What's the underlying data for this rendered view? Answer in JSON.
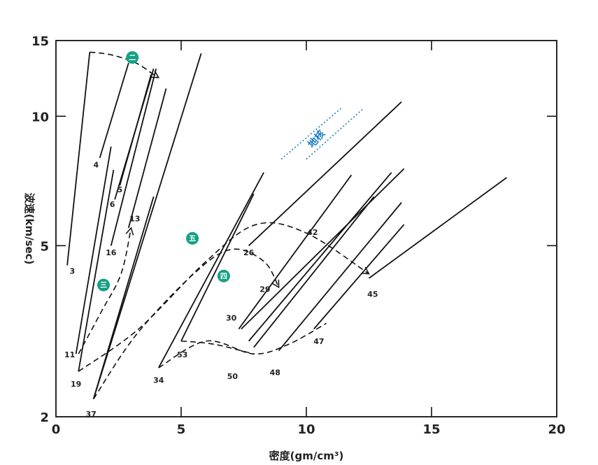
{
  "chart_data": {
    "type": "line",
    "title": "",
    "xlabel": "密度(gm/cm³)",
    "ylabel": "波速(km/sec)",
    "xlim": [
      0,
      20
    ],
    "ylim": [
      2,
      15
    ],
    "x_ticks": [
      {
        "v": 0,
        "label": "0"
      },
      {
        "v": 5,
        "label": "5"
      },
      {
        "v": 10,
        "label": "10"
      },
      {
        "v": 15,
        "label": "15"
      },
      {
        "v": 20,
        "label": "20"
      }
    ],
    "y_ticks": [
      {
        "v": 2,
        "label": "2"
      },
      {
        "v": 5,
        "label": "5"
      },
      {
        "v": 10,
        "label": "10"
      },
      {
        "v": 15,
        "label": "15"
      }
    ],
    "solid_lines": [
      {
        "label": "3",
        "x": [
          0.45,
          1.35
        ],
        "y": [
          4.5,
          14.1
        ]
      },
      {
        "label": "4",
        "x": [
          1.75,
          2.9
        ],
        "y": [
          8.0,
          13.3
        ]
      },
      {
        "label": "5",
        "x": [
          2.55,
          3.8
        ],
        "y": [
          6.9,
          12.5
        ]
      },
      {
        "label": "6",
        "x": [
          2.35,
          3.9
        ],
        "y": [
          6.4,
          12.9
        ]
      },
      {
        "label": "16",
        "x": [
          2.2,
          4.0
        ],
        "y": [
          5.0,
          12.9
        ]
      },
      {
        "label": "13",
        "x": [
          2.9,
          4.4
        ],
        "y": [
          5.5,
          11.6
        ]
      },
      {
        "label": "11",
        "x": [
          0.8,
          2.2
        ],
        "y": [
          2.8,
          8.5
        ]
      },
      {
        "label": "19",
        "x": [
          0.9,
          2.3
        ],
        "y": [
          2.55,
          7.5
        ]
      },
      {
        "label": "37",
        "x": [
          1.5,
          5.8
        ],
        "y": [
          2.2,
          14.0
        ]
      },
      {
        "label": "",
        "x": [
          1.5,
          3.9
        ],
        "y": [
          2.2,
          6.5
        ]
      },
      {
        "label": "34",
        "x": [
          4.1,
          8.3
        ],
        "y": [
          2.6,
          7.4
        ]
      },
      {
        "label": "53",
        "x": [
          5.0,
          7.9
        ],
        "y": [
          3.0,
          6.6
        ]
      },
      {
        "label": "26",
        "x": [
          7.7,
          13.8
        ],
        "y": [
          5.0,
          10.8
        ]
      },
      {
        "label": "30",
        "x": [
          7.3,
          11.8
        ],
        "y": [
          3.2,
          7.3
        ]
      },
      {
        "label": "29",
        "x": [
          7.4,
          13.9
        ],
        "y": [
          3.2,
          7.55
        ]
      },
      {
        "label": "42",
        "x": [
          7.7,
          13.4
        ],
        "y": [
          3.0,
          7.4
        ]
      },
      {
        "label": "50",
        "x": [
          7.9,
          12.7
        ],
        "y": [
          2.9,
          6.5
        ]
      },
      {
        "label": "48",
        "x": [
          8.9,
          13.8
        ],
        "y": [
          2.85,
          6.3
        ]
      },
      {
        "label": "47",
        "x": [
          10.3,
          13.9
        ],
        "y": [
          3.2,
          5.6
        ]
      },
      {
        "label": "45",
        "x": [
          12.5,
          18.0
        ],
        "y": [
          4.2,
          7.2
        ]
      }
    ],
    "dashed_curves": [
      {
        "marker": "二",
        "x": [
          1.35,
          2.2,
          3.2,
          3.9,
          4.1
        ],
        "y": [
          14.1,
          13.9,
          13.3,
          12.5,
          12.3
        ],
        "arrow": true
      },
      {
        "marker": "三",
        "x": [
          0.9,
          1.8,
          2.6,
          3.0
        ],
        "y": [
          2.8,
          3.5,
          4.3,
          5.5
        ],
        "arrow": true
      },
      {
        "marker": "",
        "x": [
          0.9,
          3.3,
          6.0,
          8.0,
          10.0,
          12.5
        ],
        "y": [
          2.55,
          3.2,
          4.6,
          5.6,
          5.35,
          4.3
        ],
        "arrow": true
      },
      {
        "marker": "四",
        "x": [
          1.5,
          3.2,
          5.5,
          7.0,
          8.3,
          8.9
        ],
        "y": [
          2.2,
          3.1,
          4.3,
          4.9,
          4.6,
          4.0
        ],
        "arrow": true
      },
      {
        "marker": "五",
        "x": [
          4.1,
          6.0,
          7.9,
          9.3,
          10.8
        ],
        "y": [
          2.6,
          3.0,
          2.8,
          2.95,
          3.3
        ],
        "arrow": false
      },
      {
        "marker": "",
        "x": [
          5.0,
          6.3,
          7.9
        ],
        "y": [
          3.0,
          2.95,
          2.8
        ],
        "arrow": false
      }
    ],
    "point_labels": [
      {
        "text": "3",
        "x": 0.65,
        "y": 4.3
      },
      {
        "text": "4",
        "x": 1.6,
        "y": 7.6
      },
      {
        "text": "5",
        "x": 2.55,
        "y": 6.65
      },
      {
        "text": "6",
        "x": 2.25,
        "y": 6.15
      },
      {
        "text": "16",
        "x": 2.2,
        "y": 4.75
      },
      {
        "text": "13",
        "x": 3.15,
        "y": 5.7
      },
      {
        "text": "11",
        "x": 0.55,
        "y": 2.75
      },
      {
        "text": "19",
        "x": 0.8,
        "y": 2.35
      },
      {
        "text": "37",
        "x": 1.4,
        "y": 2.0
      },
      {
        "text": "34",
        "x": 4.1,
        "y": 2.4
      },
      {
        "text": "53",
        "x": 5.05,
        "y": 2.75
      },
      {
        "text": "26",
        "x": 7.7,
        "y": 4.75
      },
      {
        "text": "30",
        "x": 7.0,
        "y": 3.35
      },
      {
        "text": "29",
        "x": 8.35,
        "y": 3.9
      },
      {
        "text": "42",
        "x": 10.25,
        "y": 5.3
      },
      {
        "text": "50",
        "x": 7.05,
        "y": 2.45
      },
      {
        "text": "48",
        "x": 8.75,
        "y": 2.5
      },
      {
        "text": "47",
        "x": 10.5,
        "y": 2.95
      },
      {
        "text": "45",
        "x": 12.65,
        "y": 3.8
      }
    ],
    "markers": [
      {
        "text": "二",
        "x": 3.05,
        "y": 13.7
      },
      {
        "text": "三",
        "x": 1.9,
        "y": 4.05
      },
      {
        "text": "四",
        "x": 6.7,
        "y": 4.25
      },
      {
        "text": "五",
        "x": 5.45,
        "y": 5.2
      }
    ],
    "region": {
      "text": "地核",
      "lines": [
        {
          "x": [
            9.0,
            11.4
          ],
          "y": [
            7.95,
            10.45
          ]
        },
        {
          "x": [
            10.0,
            12.3
          ],
          "y": [
            7.95,
            10.45
          ]
        }
      ],
      "text_x": 10.5,
      "text_y": 8.75
    }
  }
}
